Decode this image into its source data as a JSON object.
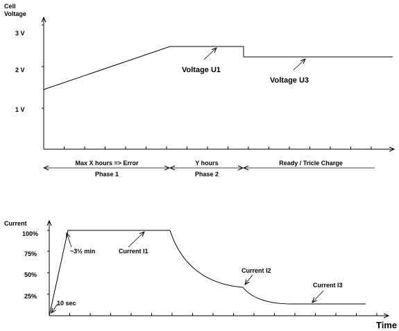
{
  "voltage_chart": {
    "ylabel_line1": "Cell",
    "ylabel_line2": "Voltage",
    "yticks": [
      "3 V",
      "2 V",
      "1 V"
    ],
    "annotations": {
      "u1": "Voltage U1",
      "u3": "Voltage U3"
    }
  },
  "phases": {
    "phase1_top": "Max X hours => Error",
    "phase1_bottom": "Phase 1",
    "phase2_top": "Y hours",
    "phase2_bottom": "Phase 2",
    "phase3_top": "Ready / Tricle Charge"
  },
  "current_chart": {
    "ylabel": "Current",
    "yticks": [
      "100%",
      "75%",
      "50%",
      "25%"
    ],
    "annotations": {
      "ramp": "~3½ min",
      "i1": "Current I1",
      "i2": "Current I2",
      "i3": "Current I3",
      "start": "10 sec"
    },
    "xlabel": "Time"
  },
  "chart_data": [
    {
      "type": "line",
      "title": "",
      "ylabel": "Cell Voltage",
      "yticks": [
        "1 V",
        "2 V",
        "3 V"
      ],
      "series": [
        {
          "name": "Voltage U1",
          "x": [
            0,
            5,
            8
          ],
          "y": [
            1.45,
            2.45,
            2.45
          ]
        },
        {
          "name": "Voltage U3",
          "x": [
            8,
            13.5
          ],
          "y": [
            2.2,
            2.2
          ]
        }
      ]
    },
    {
      "type": "line",
      "title": "",
      "ylabel": "Current",
      "xlabel": "Time",
      "yticks": [
        "25%",
        "50%",
        "75%",
        "100%"
      ],
      "series": [
        {
          "name": "Current I1",
          "x": [
            0,
            1,
            5
          ],
          "y": [
            0,
            100,
            100
          ]
        },
        {
          "name": "Current I2",
          "x": [
            5,
            8
          ],
          "y": [
            100,
            30
          ]
        },
        {
          "name": "Current I3",
          "x": [
            8,
            9.5,
            13.5
          ],
          "y": [
            30,
            12,
            12
          ]
        }
      ]
    }
  ]
}
